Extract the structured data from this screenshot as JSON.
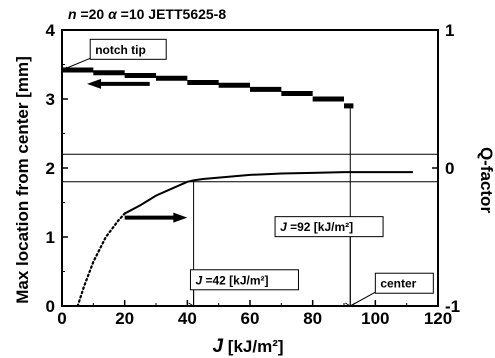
{
  "header": {
    "parts": [
      {
        "text": "n",
        "italic": true
      },
      {
        "text": " =20  ",
        "italic": false
      },
      {
        "text": "α",
        "italic": true
      },
      {
        "text": " =10  JETT5625-8",
        "italic": false
      }
    ]
  },
  "chart_data": {
    "type": "line",
    "xlabel": {
      "italic": "J",
      "rest": "[kJ/m²]"
    },
    "ylabel_left": "Max location from center [mm]",
    "ylabel_right": "Q-factor",
    "xlim": [
      0,
      120
    ],
    "ylim_left": [
      0,
      4
    ],
    "ylim_right": [
      -1,
      1
    ],
    "x_ticks": [
      0,
      20,
      40,
      60,
      80,
      100,
      120
    ],
    "y_ticks_left": [
      0,
      1,
      2,
      3,
      4
    ],
    "y_ticks_right": [
      -1,
      0,
      1
    ],
    "grid": false,
    "series": [
      {
        "axis": "left",
        "style": "thick-step",
        "points": [
          [
            0,
            3.42
          ],
          [
            10,
            3.38
          ],
          [
            20,
            3.34
          ],
          [
            30,
            3.3
          ],
          [
            40,
            3.24
          ],
          [
            50,
            3.2
          ],
          [
            60,
            3.14
          ],
          [
            70,
            3.08
          ],
          [
            80,
            3.0
          ],
          [
            90,
            2.9
          ],
          [
            93,
            2.9
          ]
        ]
      },
      {
        "axis": "right",
        "style": "dotted-then-solid",
        "points": [
          [
            5,
            -1.0
          ],
          [
            7,
            -0.86
          ],
          [
            10,
            -0.68
          ],
          [
            14,
            -0.5
          ],
          [
            18,
            -0.38
          ],
          [
            20,
            -0.33
          ],
          [
            25,
            -0.27
          ],
          [
            30,
            -0.2
          ],
          [
            35,
            -0.15
          ],
          [
            40,
            -0.1
          ],
          [
            42,
            -0.09
          ],
          [
            45,
            -0.08
          ],
          [
            50,
            -0.07
          ],
          [
            55,
            -0.06
          ],
          [
            60,
            -0.05
          ],
          [
            65,
            -0.045
          ],
          [
            70,
            -0.04
          ],
          [
            80,
            -0.035
          ],
          [
            90,
            -0.03
          ],
          [
            100,
            -0.03
          ],
          [
            112,
            -0.03
          ]
        ]
      }
    ],
    "reference_lines": {
      "horizontal_left_units": [
        2.2,
        1.8
      ],
      "vertical_x": [
        42,
        92
      ]
    },
    "arrows": [
      {
        "direction": "left",
        "at_x": [
          8,
          28
        ],
        "at_y_left": 3.22,
        "meaning": "left axis"
      },
      {
        "direction": "right",
        "at_x": [
          20,
          40
        ],
        "at_y_left": 1.28,
        "meaning": "right axis"
      }
    ],
    "annotations": [
      {
        "id": "notch-tip",
        "text": "notch tip",
        "box_x": 9,
        "box_y_left": 3.72,
        "target": [
          0,
          3.42
        ]
      },
      {
        "id": "j42",
        "j": "J",
        "rest": " =42  [kJ/m²]",
        "box_x": 41,
        "box_y_left": 0.38,
        "target": [
          42,
          0
        ]
      },
      {
        "id": "j92",
        "j": "J",
        "rest": " =92  [kJ/m²]",
        "box_x": 68,
        "box_y_left": 1.15,
        "target": [
          92,
          0
        ]
      },
      {
        "id": "center",
        "text": "center",
        "box_x": 100,
        "box_y_left": 0.33,
        "target": [
          92,
          0
        ]
      }
    ]
  }
}
